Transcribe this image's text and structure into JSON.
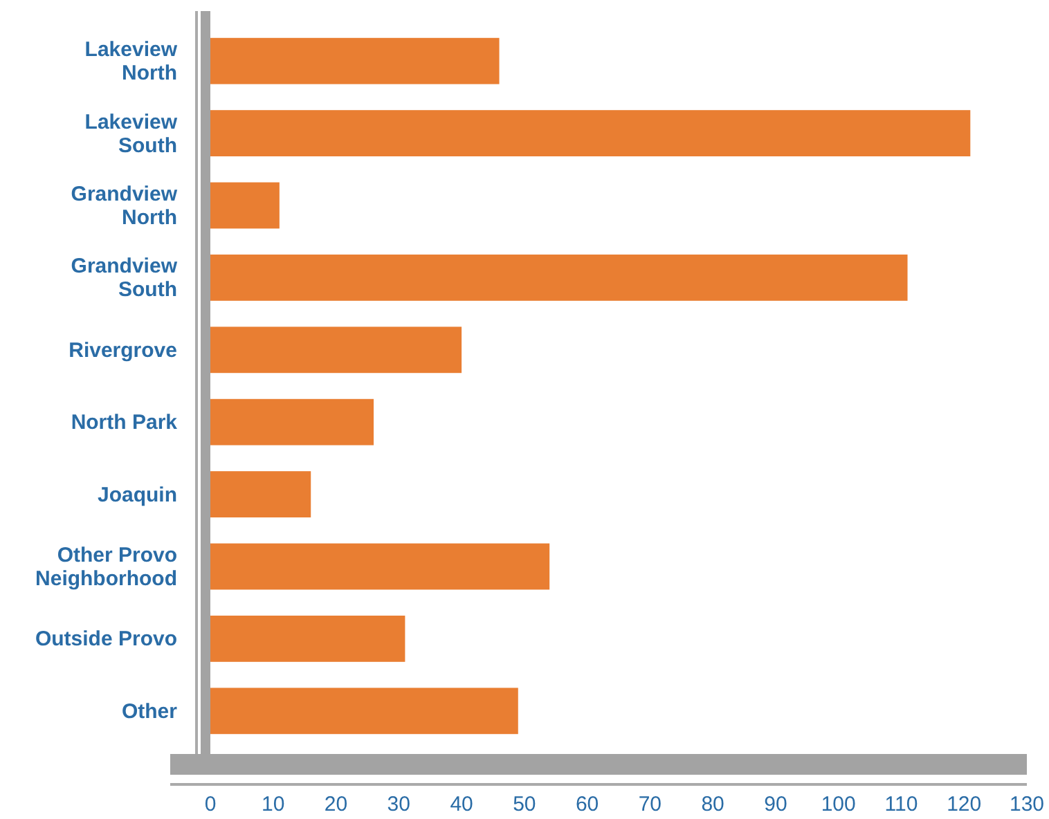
{
  "chart_data": {
    "type": "bar",
    "orientation": "horizontal",
    "categories": [
      "Lakeview North",
      "Lakeview South",
      "Grandview North",
      "Grandview South",
      "Rivergrove",
      "North Park",
      "Joaquin",
      "Other Provo Neighborhood",
      "Outside Provo",
      "Other"
    ],
    "values": [
      46,
      121,
      11,
      111,
      40,
      26,
      16,
      54,
      31,
      49
    ],
    "color": "#e97e32",
    "xlim": [
      0,
      130
    ],
    "xticks": [
      0,
      10,
      20,
      30,
      40,
      50,
      60,
      70,
      80,
      90,
      100,
      110,
      120,
      130
    ]
  }
}
